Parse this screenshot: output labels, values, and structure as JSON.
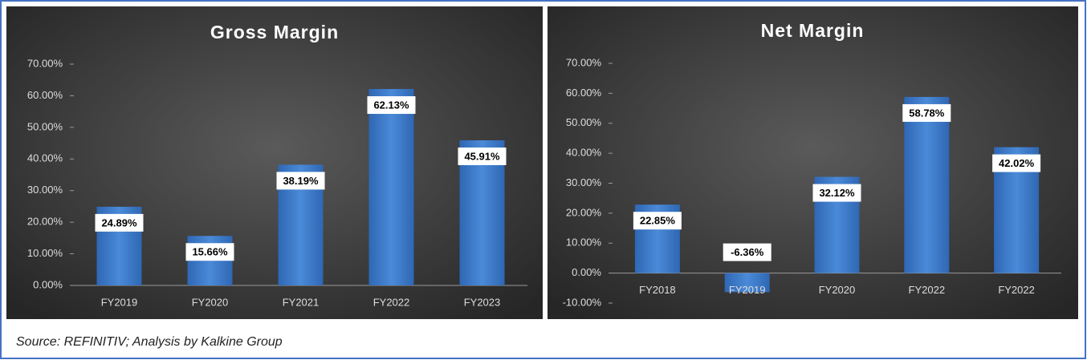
{
  "chart_data": [
    {
      "type": "bar",
      "title": "Gross Margin",
      "categories": [
        "FY2019",
        "FY2020",
        "FY2021",
        "FY2022",
        "FY2023"
      ],
      "values": [
        24.89,
        15.66,
        38.19,
        62.13,
        45.91
      ],
      "value_labels": [
        "24.89%",
        "15.66%",
        "38.19%",
        "62.13%",
        "45.91%"
      ],
      "color": "#3f7fd0",
      "ylim": [
        0,
        70
      ],
      "yticks": [
        {
          "value": 0,
          "label": "0.00%"
        },
        {
          "value": 10,
          "label": "10.00%"
        },
        {
          "value": 20,
          "label": "20.00%"
        },
        {
          "value": 30,
          "label": "30.00%"
        },
        {
          "value": 40,
          "label": "40.00%"
        },
        {
          "value": 50,
          "label": "50.00%"
        },
        {
          "value": 60,
          "label": "60.00%"
        },
        {
          "value": 70,
          "label": "70.00%"
        }
      ]
    },
    {
      "type": "bar",
      "title": "Net Margin",
      "categories": [
        "FY2018",
        "FY2019",
        "FY2020",
        "FY2022",
        "FY2022"
      ],
      "values": [
        22.85,
        -6.36,
        32.12,
        58.78,
        42.02
      ],
      "value_labels": [
        "22.85%",
        "-6.36%",
        "32.12%",
        "58.78%",
        "42.02%"
      ],
      "color": "#3f7fd0",
      "ylim": [
        -10,
        70
      ],
      "yticks": [
        {
          "value": -10,
          "label": "-10.00%"
        },
        {
          "value": 0,
          "label": "0.00%"
        },
        {
          "value": 10,
          "label": "10.00%"
        },
        {
          "value": 20,
          "label": "20.00%"
        },
        {
          "value": 30,
          "label": "30.00%"
        },
        {
          "value": 40,
          "label": "40.00%"
        },
        {
          "value": 50,
          "label": "50.00%"
        },
        {
          "value": 60,
          "label": "60.00%"
        },
        {
          "value": 70,
          "label": "70.00%"
        }
      ]
    }
  ],
  "source": "Source: REFINITIV; Analysis by Kalkine Group"
}
